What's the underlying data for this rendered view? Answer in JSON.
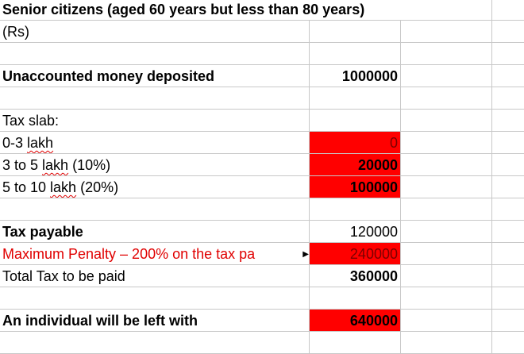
{
  "title": "Senior citizens (aged 60 years but less than 80 years)",
  "unit": "(Rs)",
  "rows": {
    "unaccounted": {
      "label": "Unaccounted money deposited",
      "value": "1000000"
    },
    "tax_slab_header": "Tax slab:",
    "slab1": {
      "label_a": "0-3 ",
      "label_b": "lakh",
      "value": "0"
    },
    "slab2": {
      "label_a": "3 to 5 ",
      "label_b": "lakh",
      "label_c": " (10%)",
      "value": "20000"
    },
    "slab3": {
      "label_a": "5 to 10 ",
      "label_b": "lakh",
      "label_c": " (20%)",
      "value": "100000"
    },
    "tax_payable": {
      "label": "Tax payable",
      "value": "120000"
    },
    "penalty": {
      "label": "Maximum Penalty – 200% on the tax pa",
      "value": "240000"
    },
    "total": {
      "label": "Total Tax to be paid",
      "value": "360000"
    },
    "left_with": {
      "label": "An individual will be left with",
      "value": "640000"
    }
  },
  "colors": {
    "highlight": "#ff0000",
    "penalty_text": "#e00000"
  }
}
